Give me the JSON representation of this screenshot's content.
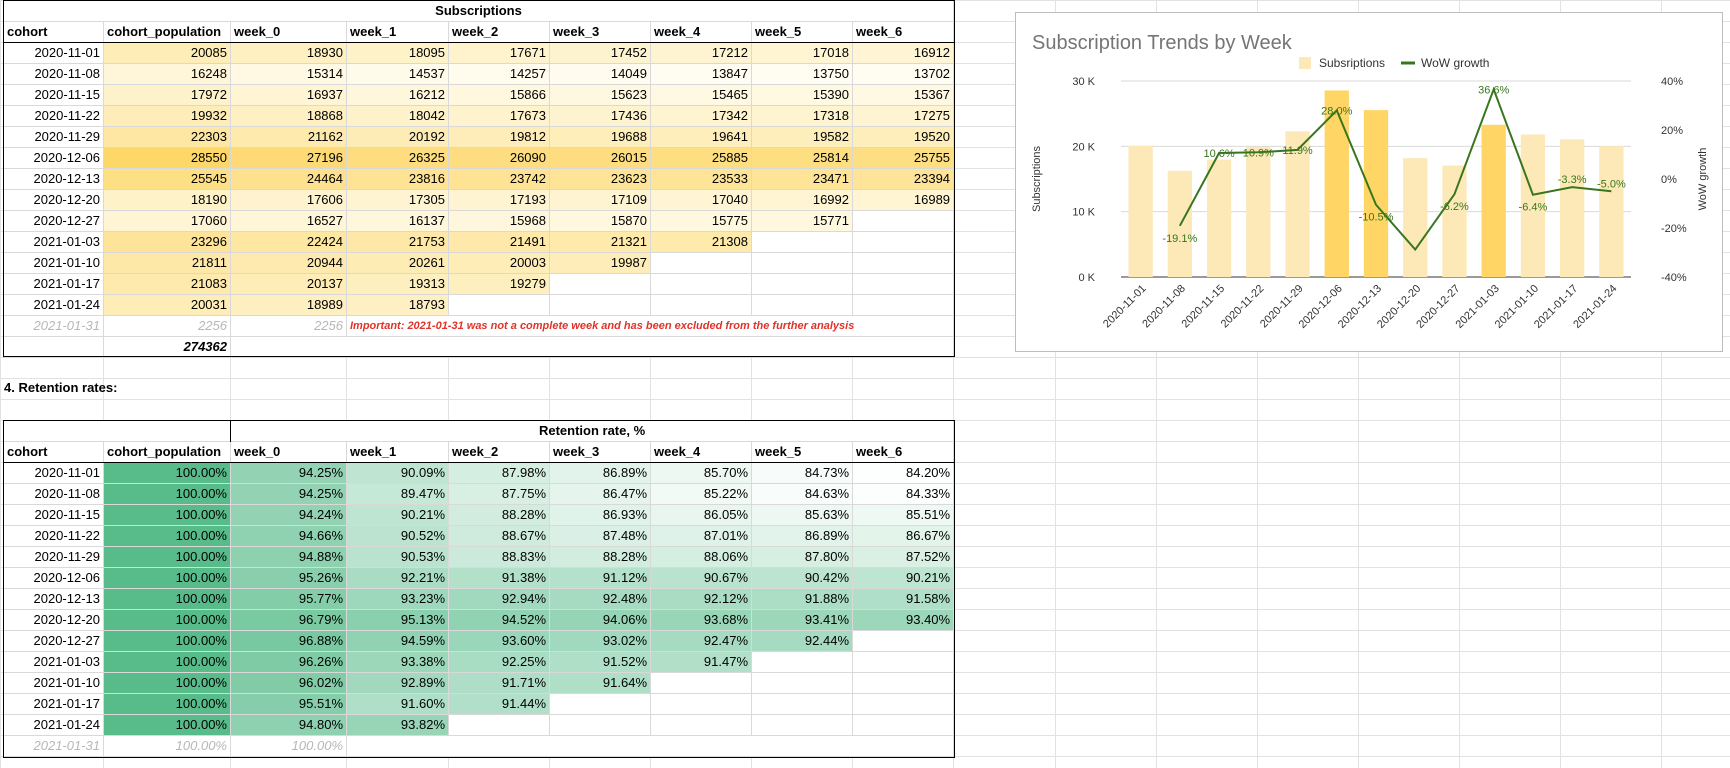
{
  "subscriptions_table": {
    "title": "Subscriptions",
    "headers": [
      "cohort",
      "cohort_population",
      "week_0",
      "week_1",
      "week_2",
      "week_3",
      "week_4",
      "week_5",
      "week_6"
    ],
    "rows": [
      [
        "2020-11-01",
        "20085",
        "18930",
        "18095",
        "17671",
        "17452",
        "17212",
        "17018",
        "16912"
      ],
      [
        "2020-11-08",
        "16248",
        "15314",
        "14537",
        "14257",
        "14049",
        "13847",
        "13750",
        "13702"
      ],
      [
        "2020-11-15",
        "17972",
        "16937",
        "16212",
        "15866",
        "15623",
        "15465",
        "15390",
        "15367"
      ],
      [
        "2020-11-22",
        "19932",
        "18868",
        "18042",
        "17673",
        "17436",
        "17342",
        "17318",
        "17275"
      ],
      [
        "2020-11-29",
        "22303",
        "21162",
        "20192",
        "19812",
        "19688",
        "19641",
        "19582",
        "19520"
      ],
      [
        "2020-12-06",
        "28550",
        "27196",
        "26325",
        "26090",
        "26015",
        "25885",
        "25814",
        "25755"
      ],
      [
        "2020-12-13",
        "25545",
        "24464",
        "23816",
        "23742",
        "23623",
        "23533",
        "23471",
        "23394"
      ],
      [
        "2020-12-20",
        "18190",
        "17606",
        "17305",
        "17193",
        "17109",
        "17040",
        "16992",
        "16989"
      ],
      [
        "2020-12-27",
        "17060",
        "16527",
        "16137",
        "15968",
        "15870",
        "15775",
        "15771",
        ""
      ],
      [
        "2021-01-03",
        "23296",
        "22424",
        "21753",
        "21491",
        "21321",
        "21308",
        "",
        ""
      ],
      [
        "2021-01-10",
        "21811",
        "20944",
        "20261",
        "20003",
        "19987",
        "",
        "",
        ""
      ],
      [
        "2021-01-17",
        "21083",
        "20137",
        "19313",
        "19279",
        "",
        "",
        "",
        ""
      ],
      [
        "2021-01-24",
        "20031",
        "18989",
        "18793",
        "",
        "",
        "",
        "",
        ""
      ]
    ],
    "excluded_row": [
      "2021-01-31",
      "2256",
      "2256"
    ],
    "note": "Important: 2021-01-31 was not a complete week and has been excluded from the further analysis",
    "total": "274362"
  },
  "section_label": "4. Retention rates:",
  "retention_table": {
    "title": "Retention rate, %",
    "headers": [
      "cohort",
      "cohort_population",
      "week_0",
      "week_1",
      "week_2",
      "week_3",
      "week_4",
      "week_5",
      "week_6"
    ],
    "rows": [
      [
        "2020-11-01",
        "100.00%",
        "94.25%",
        "90.09%",
        "87.98%",
        "86.89%",
        "85.70%",
        "84.73%",
        "84.20%"
      ],
      [
        "2020-11-08",
        "100.00%",
        "94.25%",
        "89.47%",
        "87.75%",
        "86.47%",
        "85.22%",
        "84.63%",
        "84.33%"
      ],
      [
        "2020-11-15",
        "100.00%",
        "94.24%",
        "90.21%",
        "88.28%",
        "86.93%",
        "86.05%",
        "85.63%",
        "85.51%"
      ],
      [
        "2020-11-22",
        "100.00%",
        "94.66%",
        "90.52%",
        "88.67%",
        "87.48%",
        "87.01%",
        "86.89%",
        "86.67%"
      ],
      [
        "2020-11-29",
        "100.00%",
        "94.88%",
        "90.53%",
        "88.83%",
        "88.28%",
        "88.06%",
        "87.80%",
        "87.52%"
      ],
      [
        "2020-12-06",
        "100.00%",
        "95.26%",
        "92.21%",
        "91.38%",
        "91.12%",
        "90.67%",
        "90.42%",
        "90.21%"
      ],
      [
        "2020-12-13",
        "100.00%",
        "95.77%",
        "93.23%",
        "92.94%",
        "92.48%",
        "92.12%",
        "91.88%",
        "91.58%"
      ],
      [
        "2020-12-20",
        "100.00%",
        "96.79%",
        "95.13%",
        "94.52%",
        "94.06%",
        "93.68%",
        "93.41%",
        "93.40%"
      ],
      [
        "2020-12-27",
        "100.00%",
        "96.88%",
        "94.59%",
        "93.60%",
        "93.02%",
        "92.47%",
        "92.44%",
        ""
      ],
      [
        "2021-01-03",
        "100.00%",
        "96.26%",
        "93.38%",
        "92.25%",
        "91.52%",
        "91.47%",
        "",
        ""
      ],
      [
        "2021-01-10",
        "100.00%",
        "96.02%",
        "92.89%",
        "91.71%",
        "91.64%",
        "",
        "",
        ""
      ],
      [
        "2021-01-17",
        "100.00%",
        "95.51%",
        "91.60%",
        "91.44%",
        "",
        "",
        "",
        ""
      ],
      [
        "2021-01-24",
        "100.00%",
        "94.80%",
        "93.82%",
        "",
        "",
        "",
        "",
        ""
      ]
    ],
    "excluded_row": [
      "2021-01-31",
      "100.00%",
      "100.00%"
    ]
  },
  "colors": {
    "subs_heat_low": "#fffdf2",
    "subs_heat_high": "#fdd768",
    "ret_heat_low": "#ffffff",
    "ret_heat_high": "#57bb8a",
    "bar_light": "#fde9b8",
    "bar_highlight": "#ffd666",
    "line": "#38761d",
    "note_red": "#e0332a"
  },
  "chart_data": {
    "type": "bar",
    "title": "Subscription Trends by Week",
    "categories": [
      "2020-11-01",
      "2020-11-08",
      "2020-11-15",
      "2020-11-22",
      "2020-11-29",
      "2020-12-06",
      "2020-12-13",
      "2020-12-20",
      "2020-12-27",
      "2021-01-03",
      "2021-01-10",
      "2021-01-17",
      "2021-01-24"
    ],
    "series": [
      {
        "name": "Subsriptions",
        "type": "bar",
        "axis": "left",
        "values": [
          20085,
          16248,
          17972,
          19932,
          22303,
          28550,
          25545,
          18190,
          17060,
          23296,
          21811,
          21083,
          20031
        ]
      },
      {
        "name": "WoW growth",
        "type": "line",
        "axis": "right",
        "values": [
          null,
          -19.1,
          10.6,
          10.9,
          11.9,
          28.0,
          -10.5,
          -28.8,
          -6.2,
          36.6,
          -6.4,
          -3.3,
          -5.0
        ]
      }
    ],
    "point_labels": [
      "",
      "-19.1%",
      "10.6%",
      "10.9%",
      "11.9%",
      "28.0%",
      "-10.5%",
      "",
      "-6.2%",
      "36.6%",
      "-6.4%",
      "-3.3%",
      "-5.0%"
    ],
    "highlighted_bars": [
      5,
      6,
      9
    ],
    "ylabel": "Subscriptions",
    "y2label": "WoW growth",
    "ylim": [
      0,
      30000
    ],
    "y2lim": [
      -40,
      40
    ],
    "yticks": [
      "0 K",
      "10 K",
      "20 K",
      "30 K"
    ],
    "y2ticks": [
      "-40%",
      "-20%",
      "0%",
      "20%",
      "40%"
    ],
    "legend_position": "top",
    "grid": true
  }
}
